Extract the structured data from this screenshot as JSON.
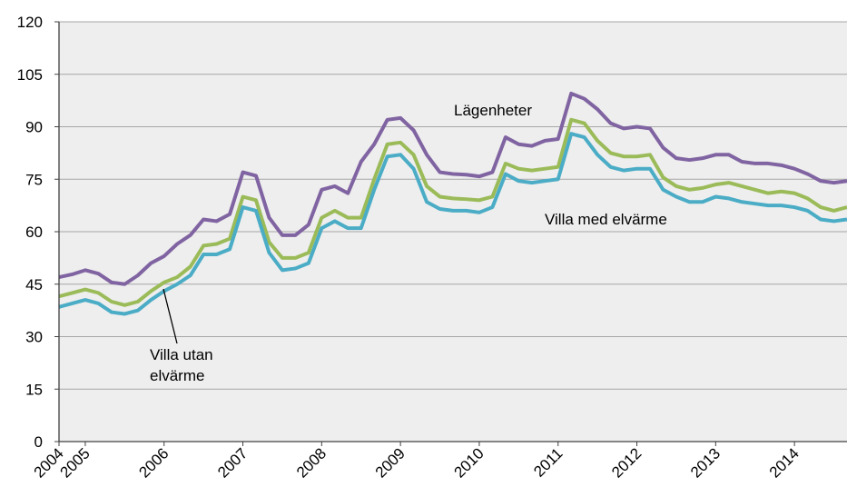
{
  "chart_data": {
    "type": "line",
    "categories": [
      "2004",
      null,
      "2005",
      null,
      null,
      null,
      null,
      null,
      "2006",
      null,
      null,
      null,
      null,
      null,
      "2007",
      null,
      null,
      null,
      null,
      null,
      "2008",
      null,
      null,
      null,
      null,
      null,
      "2009",
      null,
      null,
      null,
      null,
      null,
      "2010",
      null,
      null,
      null,
      null,
      null,
      "2011",
      null,
      null,
      null,
      null,
      null,
      "2012",
      null,
      null,
      null,
      null,
      null,
      "2013",
      null,
      null,
      null,
      null,
      null,
      "2014",
      null,
      null,
      null,
      null
    ],
    "series": [
      {
        "name": "Lägenheter",
        "color": "#8064a2",
        "values": [
          47,
          47.8,
          49,
          48,
          45.5,
          45,
          47.5,
          51,
          53,
          56.5,
          59,
          63.5,
          63,
          65,
          77,
          76,
          64,
          59,
          59,
          62,
          72,
          73,
          71,
          80,
          85,
          92,
          92.5,
          89,
          82,
          77,
          76.5,
          76.3,
          75.8,
          77,
          87,
          85,
          84.5,
          86,
          86.5,
          99.5,
          98,
          95,
          91,
          89.5,
          90,
          89.5,
          84,
          81,
          80.5,
          81,
          82,
          82,
          80,
          79.5,
          79.5,
          79,
          78,
          76.5,
          74.5,
          74,
          74.5
        ]
      },
      {
        "name": "Villa med elvärme",
        "color": "#9bbb59",
        "values": [
          41.5,
          42.5,
          43.5,
          42.5,
          40,
          39,
          40,
          43,
          45.5,
          47,
          50,
          56,
          56.5,
          58,
          70,
          69,
          57,
          52.5,
          52.5,
          54,
          64,
          66,
          64,
          64,
          75,
          85,
          85.5,
          82,
          73,
          70,
          69.5,
          69.3,
          69,
          70,
          79.5,
          78,
          77.5,
          78,
          78.5,
          92,
          91,
          86,
          82.5,
          81.5,
          81.5,
          82,
          75.5,
          73,
          72,
          72.5,
          73.5,
          74,
          73,
          72,
          71,
          71.5,
          71,
          69.5,
          67,
          66,
          67
        ]
      },
      {
        "name": "Villa utan elvärme",
        "color": "#4bacc6",
        "values": [
          38.5,
          39.5,
          40.5,
          39.5,
          37,
          36.5,
          37.5,
          40.5,
          43,
          45,
          47.5,
          53.5,
          53.5,
          55,
          67,
          66,
          54,
          49,
          49.5,
          51,
          61,
          63,
          61,
          61,
          72,
          81.5,
          82,
          78,
          68.5,
          66.5,
          66,
          66,
          65.5,
          67,
          76.5,
          74.5,
          74,
          74.5,
          75,
          88,
          87,
          82,
          78.5,
          77.5,
          78,
          78,
          72,
          70,
          68.5,
          68.5,
          70,
          69.5,
          68.5,
          68,
          67.5,
          67.5,
          67,
          66,
          63.5,
          63,
          63.5
        ]
      }
    ],
    "ylim": [
      0,
      120
    ],
    "yticks": [
      0,
      15,
      30,
      45,
      60,
      75,
      90,
      105,
      120
    ],
    "grid": true
  }
}
